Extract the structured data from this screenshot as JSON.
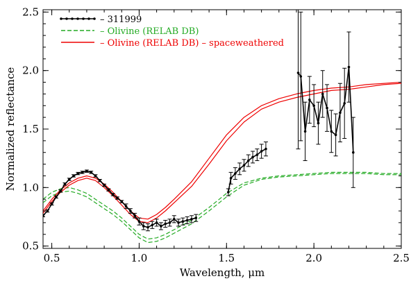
{
  "chart_data": {
    "type": "line",
    "title": "",
    "xlabel": "Wavelength, μm",
    "ylabel": "Normalized reflectance",
    "xlim": [
      0.45,
      2.5
    ],
    "ylim": [
      0.48,
      2.52
    ],
    "xticks": [
      0.5,
      1.0,
      1.5,
      2.0,
      2.5
    ],
    "xtick_labels": [
      "0.5",
      "1.0",
      "1.5",
      "2.0",
      "2.5"
    ],
    "yticks": [
      0.5,
      1.0,
      1.5,
      2.0,
      2.5
    ],
    "ytick_labels": [
      "0.5",
      "1.0",
      "1.5",
      "2.0",
      "2.5"
    ],
    "grid": false,
    "legend_position": "top-left",
    "legend": [
      {
        "label": "– 311999",
        "color": "#000000",
        "style": "solid-dots"
      },
      {
        "label": "– Olivine (RELAB DB)",
        "color": "#22aa22",
        "style": "dashed"
      },
      {
        "label": "– Olivine (RELAB DB) – spaceweathered",
        "color": "#ee0000",
        "style": "solid"
      }
    ],
    "series": [
      {
        "name": "311999",
        "color": "#000000",
        "x": [
          0.45,
          0.475,
          0.5,
          0.525,
          0.55,
          0.575,
          0.6,
          0.625,
          0.65,
          0.675,
          0.7,
          0.725,
          0.75,
          0.775,
          0.8,
          0.825,
          0.85,
          0.875,
          0.9,
          0.925,
          0.95,
          0.975,
          1.0,
          1.025,
          1.05,
          1.075,
          1.1,
          1.125,
          1.15,
          1.175,
          1.2,
          1.225,
          1.25,
          1.275,
          1.3,
          1.325,
          1.51,
          1.525,
          1.55,
          1.575,
          1.6,
          1.625,
          1.65,
          1.675,
          1.7,
          1.725,
          1.91,
          1.925,
          1.95,
          1.975,
          2.0,
          2.025,
          2.05,
          2.075,
          2.1,
          2.125,
          2.15,
          2.175,
          2.2,
          2.225
        ],
        "y": [
          0.76,
          0.8,
          0.86,
          0.92,
          0.97,
          1.03,
          1.07,
          1.1,
          1.12,
          1.13,
          1.14,
          1.13,
          1.1,
          1.06,
          1.02,
          0.98,
          0.94,
          0.91,
          0.88,
          0.84,
          0.8,
          0.76,
          0.71,
          0.67,
          0.66,
          0.68,
          0.7,
          0.67,
          0.69,
          0.7,
          0.73,
          0.7,
          0.71,
          0.72,
          0.73,
          0.74,
          0.96,
          1.08,
          1.12,
          1.16,
          1.19,
          1.23,
          1.26,
          1.28,
          1.31,
          1.33,
          1.98,
          1.95,
          1.48,
          1.75,
          1.7,
          1.55,
          1.8,
          1.68,
          1.48,
          1.45,
          1.64,
          1.72,
          2.03,
          1.3
        ],
        "err": [
          0.01,
          0.01,
          0.01,
          0.01,
          0.01,
          0.01,
          0.01,
          0.01,
          0.01,
          0.01,
          0.01,
          0.01,
          0.01,
          0.01,
          0.01,
          0.01,
          0.01,
          0.01,
          0.01,
          0.02,
          0.02,
          0.02,
          0.03,
          0.03,
          0.03,
          0.03,
          0.03,
          0.03,
          0.03,
          0.03,
          0.03,
          0.03,
          0.03,
          0.03,
          0.03,
          0.03,
          0.03,
          0.05,
          0.05,
          0.05,
          0.05,
          0.05,
          0.05,
          0.05,
          0.06,
          0.06,
          0.65,
          0.55,
          0.25,
          0.2,
          0.18,
          0.18,
          0.2,
          0.2,
          0.18,
          0.18,
          0.25,
          0.3,
          0.3,
          0.3
        ]
      },
      {
        "name": "Olivine (RELAB DB) upper",
        "color": "#22aa22",
        "x": [
          0.45,
          0.5,
          0.55,
          0.6,
          0.65,
          0.7,
          0.75,
          0.8,
          0.85,
          0.9,
          0.95,
          1.0,
          1.05,
          1.1,
          1.15,
          1.2,
          1.3,
          1.4,
          1.5,
          1.6,
          1.7,
          1.8,
          1.9,
          2.0,
          2.1,
          2.2,
          2.3,
          2.4,
          2.5
        ],
        "y": [
          0.9,
          0.96,
          0.99,
          1.0,
          0.98,
          0.95,
          0.9,
          0.85,
          0.8,
          0.74,
          0.67,
          0.6,
          0.56,
          0.57,
          0.6,
          0.64,
          0.72,
          0.83,
          0.95,
          1.04,
          1.08,
          1.1,
          1.11,
          1.12,
          1.13,
          1.13,
          1.13,
          1.12,
          1.12
        ]
      },
      {
        "name": "Olivine (RELAB DB) lower",
        "color": "#22aa22",
        "x": [
          0.45,
          0.5,
          0.55,
          0.6,
          0.65,
          0.7,
          0.75,
          0.8,
          0.85,
          0.9,
          0.95,
          1.0,
          1.05,
          1.1,
          1.15,
          1.2,
          1.3,
          1.4,
          1.5,
          1.6,
          1.7,
          1.8,
          1.9,
          2.0,
          2.1,
          2.2,
          2.3,
          2.4,
          2.5
        ],
        "y": [
          0.87,
          0.93,
          0.96,
          0.97,
          0.95,
          0.92,
          0.87,
          0.82,
          0.77,
          0.71,
          0.64,
          0.57,
          0.53,
          0.54,
          0.57,
          0.61,
          0.69,
          0.8,
          0.92,
          1.02,
          1.07,
          1.09,
          1.1,
          1.11,
          1.12,
          1.12,
          1.12,
          1.11,
          1.11
        ]
      },
      {
        "name": "Olivine (RELAB DB) - spaceweathered upper",
        "color": "#ee0000",
        "x": [
          0.45,
          0.5,
          0.55,
          0.6,
          0.65,
          0.7,
          0.75,
          0.8,
          0.85,
          0.9,
          0.95,
          1.0,
          1.05,
          1.1,
          1.15,
          1.2,
          1.3,
          1.4,
          1.5,
          1.6,
          1.7,
          1.8,
          1.9,
          2.0,
          2.1,
          2.2,
          2.3,
          2.4,
          2.5
        ],
        "y": [
          0.8,
          0.9,
          0.98,
          1.04,
          1.08,
          1.1,
          1.08,
          1.03,
          0.96,
          0.88,
          0.8,
          0.74,
          0.73,
          0.77,
          0.83,
          0.9,
          1.05,
          1.25,
          1.45,
          1.6,
          1.7,
          1.76,
          1.8,
          1.83,
          1.85,
          1.86,
          1.88,
          1.89,
          1.9
        ]
      },
      {
        "name": "Olivine (RELAB DB) - spaceweathered lower",
        "color": "#ee0000",
        "x": [
          0.45,
          0.5,
          0.55,
          0.6,
          0.65,
          0.7,
          0.75,
          0.8,
          0.85,
          0.9,
          0.95,
          1.0,
          1.05,
          1.1,
          1.15,
          1.2,
          1.3,
          1.4,
          1.5,
          1.6,
          1.7,
          1.8,
          1.9,
          2.0,
          2.1,
          2.2,
          2.3,
          2.4,
          2.5
        ],
        "y": [
          0.78,
          0.88,
          0.96,
          1.02,
          1.06,
          1.08,
          1.06,
          1.0,
          0.93,
          0.85,
          0.77,
          0.71,
          0.7,
          0.74,
          0.8,
          0.87,
          1.01,
          1.2,
          1.4,
          1.56,
          1.67,
          1.73,
          1.77,
          1.8,
          1.83,
          1.84,
          1.86,
          1.88,
          1.89
        ]
      }
    ]
  }
}
